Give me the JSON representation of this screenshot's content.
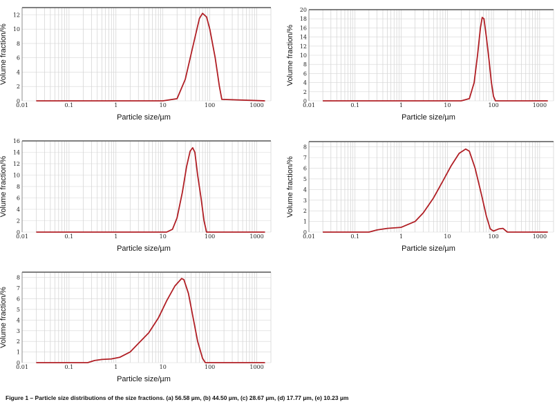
{
  "caption": "Figure 1 – Particle size distributions of the size fractions. (a) 56.58 µm, (b) 44.50 µm, (c) 28.67 µm, (d) 17.77 µm, (e) 10.23 µm",
  "chart_data": [
    {
      "type": "line",
      "id": "a",
      "xlabel": "Particle size/µm",
      "ylabel": "Volume fraction/%",
      "xscale": "log",
      "xlim": [
        0.01,
        2000
      ],
      "ylim": [
        0,
        13
      ],
      "xticks": [
        0.01,
        0.1,
        1,
        10,
        100,
        1000
      ],
      "xtick_labels": [
        "0.01",
        "0.1",
        "1",
        "10",
        "100",
        "1000"
      ],
      "yticks": [
        0,
        2,
        4,
        6,
        8,
        10,
        12
      ],
      "ytick_labels": [
        "0",
        "2",
        "4",
        "6",
        "8",
        "10",
        "12"
      ],
      "grid": true,
      "x": [
        0.02,
        10,
        20,
        30,
        45,
        60,
        70,
        85,
        100,
        130,
        160,
        180,
        1500
      ],
      "y": [
        0,
        0,
        0.3,
        3,
        8,
        11.5,
        12.2,
        11.7,
        10,
        6,
        2,
        0.2,
        0
      ]
    },
    {
      "type": "line",
      "id": "b",
      "xlabel": "Particle size/µm",
      "ylabel": "Volume fraction/%",
      "xscale": "log",
      "xlim": [
        0.01,
        2000
      ],
      "ylim": [
        0,
        20
      ],
      "xticks": [
        0.01,
        0.1,
        1,
        10,
        100,
        1000
      ],
      "xtick_labels": [
        "0.01",
        "0.1",
        "1",
        "10",
        "100",
        "1000"
      ],
      "yticks": [
        0,
        2,
        4,
        6,
        8,
        10,
        12,
        14,
        16,
        18,
        20
      ],
      "ytick_labels": [
        "0",
        "2",
        "4",
        "6",
        "8",
        "10",
        "12",
        "14",
        "16",
        "18",
        "20"
      ],
      "grid": true,
      "x": [
        0.02,
        20,
        30,
        38,
        45,
        52,
        57,
        62,
        70,
        80,
        90,
        100,
        110,
        1500
      ],
      "y": [
        0,
        0,
        0.5,
        4,
        10,
        16,
        18.3,
        18,
        14,
        9,
        4,
        1,
        0,
        0
      ]
    },
    {
      "type": "line",
      "id": "c",
      "xlabel": "Particle size/µm",
      "ylabel": "Volume fraction/%",
      "xscale": "log",
      "xlim": [
        0.01,
        2000
      ],
      "ylim": [
        0,
        16
      ],
      "xticks": [
        0.01,
        0.1,
        1,
        10,
        100,
        1000
      ],
      "xtick_labels": [
        "0.01",
        "0.1",
        "1",
        "10",
        "100",
        "1000"
      ],
      "yticks": [
        0,
        2,
        4,
        6,
        8,
        10,
        12,
        14,
        16
      ],
      "ytick_labels": [
        "0",
        "2",
        "4",
        "6",
        "8",
        "10",
        "12",
        "14",
        "16"
      ],
      "grid": true,
      "x": [
        0.02,
        12,
        16,
        20,
        26,
        32,
        38,
        43,
        48,
        55,
        65,
        75,
        85,
        1500
      ],
      "y": [
        0,
        0,
        0.5,
        2.5,
        7,
        11.5,
        14.2,
        14.8,
        14,
        10,
        6,
        2,
        0,
        0
      ]
    },
    {
      "type": "line",
      "id": "d",
      "xlabel": "Particle size/µm",
      "ylabel": "Volume fraction/%",
      "xscale": "log",
      "xlim": [
        0.01,
        2000
      ],
      "ylim": [
        0,
        8.5
      ],
      "xticks": [
        0.01,
        0.1,
        1,
        10,
        100,
        1000
      ],
      "xtick_labels": [
        "0.01",
        "0.1",
        "1",
        "10",
        "100",
        "1000"
      ],
      "yticks": [
        0,
        1,
        2,
        3,
        4,
        5,
        6,
        7,
        8
      ],
      "ytick_labels": [
        "0",
        "1",
        "2",
        "3",
        "4",
        "5",
        "6",
        "7",
        "8"
      ],
      "grid": true,
      "x": [
        0.02,
        0.2,
        0.3,
        0.5,
        1,
        2,
        3,
        5,
        8,
        12,
        18,
        25,
        30,
        40,
        55,
        70,
        85,
        100,
        130,
        160,
        200,
        1500
      ],
      "y": [
        0,
        0,
        0.2,
        0.35,
        0.45,
        1,
        1.8,
        3.2,
        4.8,
        6.2,
        7.4,
        7.8,
        7.6,
        6,
        3.5,
        1.5,
        0.3,
        0.1,
        0.3,
        0.35,
        0,
        0
      ]
    },
    {
      "type": "line",
      "id": "e",
      "xlabel": "Particle size/µm",
      "ylabel": "Volume fraction/%",
      "xscale": "log",
      "xlim": [
        0.01,
        2000
      ],
      "ylim": [
        0,
        8.5
      ],
      "xticks": [
        0.01,
        0.1,
        1,
        10,
        100,
        1000
      ],
      "xtick_labels": [
        "0.01",
        "0.1",
        "1",
        "10",
        "100",
        "1000"
      ],
      "yticks": [
        0,
        1,
        2,
        3,
        4,
        5,
        6,
        7,
        8
      ],
      "ytick_labels": [
        "0",
        "1",
        "2",
        "3",
        "4",
        "5",
        "6",
        "7",
        "8"
      ],
      "grid": true,
      "x": [
        0.02,
        0.25,
        0.35,
        0.5,
        0.8,
        1.2,
        2,
        3,
        5,
        8,
        12,
        18,
        25,
        28,
        35,
        45,
        55,
        70,
        80,
        1500
      ],
      "y": [
        0,
        0,
        0.2,
        0.3,
        0.35,
        0.5,
        1,
        1.8,
        2.8,
        4.2,
        5.8,
        7.2,
        7.9,
        7.8,
        6.5,
        4,
        2,
        0.4,
        0,
        0
      ]
    }
  ]
}
